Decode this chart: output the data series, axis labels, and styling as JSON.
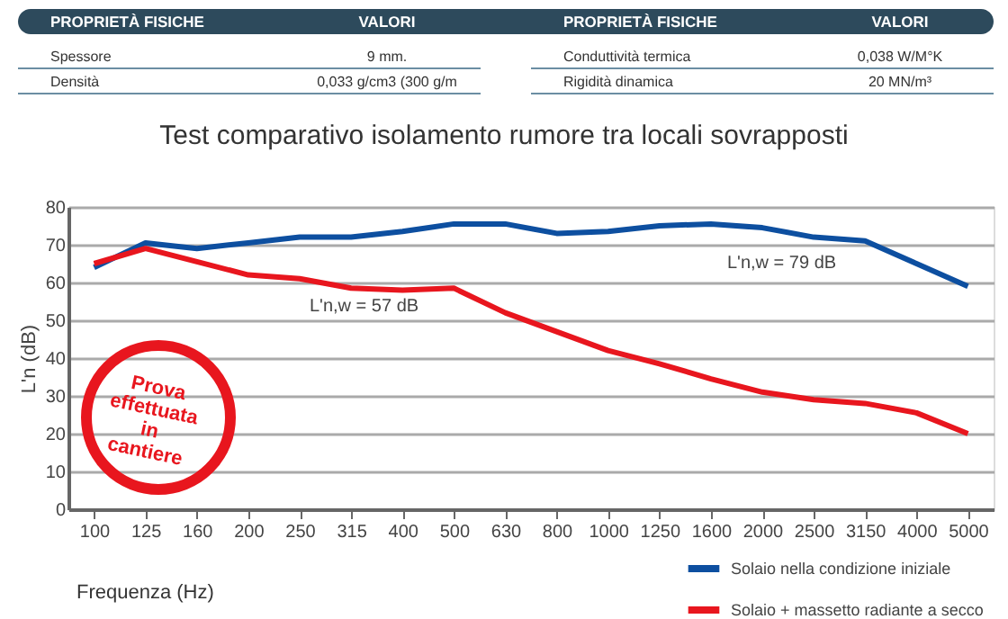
{
  "chart_data": {
    "type": "line",
    "title": "Test comparativo isolamento rumore tra locali sovrapposti",
    "xlabel": "Frequenza (Hz)",
    "ylabel": "L'n (dB)",
    "categories": [
      "100",
      "125",
      "160",
      "200",
      "250",
      "315",
      "400",
      "500",
      "630",
      "800",
      "1000",
      "1250",
      "1600",
      "2000",
      "2500",
      "3150",
      "4000",
      "5000"
    ],
    "series": [
      {
        "name": "Solaio nella condizione iniziale",
        "color": "#0d4fa0",
        "values": [
          64,
          70.5,
          69,
          70.5,
          72,
          72,
          73.5,
          75.5,
          75.5,
          73,
          73.5,
          75,
          75.5,
          74.5,
          72,
          71,
          65,
          59
        ]
      },
      {
        "name": "Solaio + massetto radiante a secco",
        "color": "#e8161e",
        "values": [
          65,
          69,
          65.5,
          62,
          61,
          58.5,
          58,
          58.5,
          52,
          47,
          42,
          38.5,
          34.5,
          31,
          29,
          28,
          25.5,
          20
        ]
      }
    ],
    "ylim": [
      0,
      80
    ],
    "yticks": [
      0,
      10,
      20,
      30,
      40,
      50,
      60,
      70,
      80
    ],
    "grid": "y",
    "legend": "bottom right",
    "line_style": "solid",
    "marker": "none",
    "annotations": [
      "PROPRIETÀ FISICHE",
      "VALORI",
      "PROPRIETÀ FISICHE",
      "VALORI",
      "Spessore",
      "9 mm.",
      "Conduttività termica",
      "0,038 W/M°K",
      "Densità",
      "0,033 g/cm3 (300 g/m",
      "Rigidità dinamica",
      "20 MN/m³",
      "Prova effettuata in cantiere",
      "L'n,w = 57 dB",
      "L'n,w = 79 dB"
    ]
  }
}
